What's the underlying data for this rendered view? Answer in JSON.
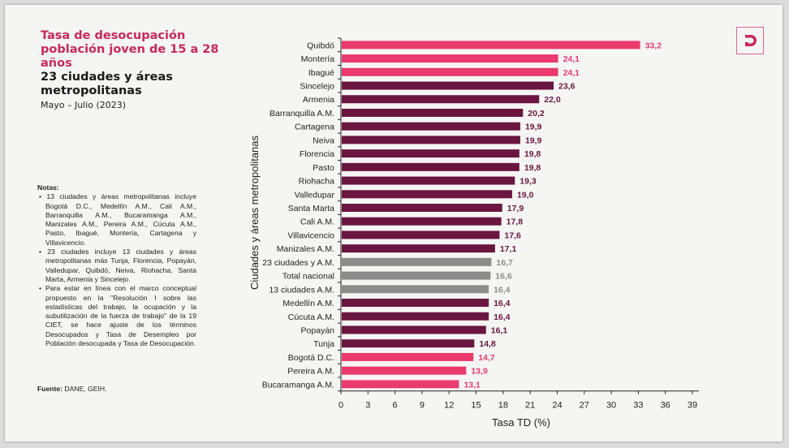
{
  "header": {
    "title_line1": "Tasa de desocupación población joven de 15 a 28 años",
    "title_line2": "23 ciudades y áreas metropolitanas",
    "period": "Mayo – Julio (2023)"
  },
  "notes": {
    "heading": "Notas:",
    "items": [
      "13 ciudades y áreas metropolitanas incluye Bogotá D.C., Medellín A.M., Cali A.M., Barranquilla A.M., Bucaramanga A.M., Manizales A.M., Pereira A.M., Cúcuta A.M., Pasto, Ibagué, Montería, Cartagena y Villavicencio.",
      "23 ciudades incluye 13 ciudades y áreas metropolitanas más Tunja, Florencia, Popayán, Valledupar, Quibdó, Neiva, Riohacha, Santa Marta, Armenia y Sincelejo.",
      "Para estar en línea con el marco conceptual propuesto en la \"Resolución I sobre las estadísticas del trabajo, la ocupación y la subutilización de la fuerza de trabajo\" de la 19 CIET, se hace ajuste de los términos Desocupados y Tasa de Desempleo por Población desocupada y Tasa de Desocupación."
    ],
    "source_label": "Fuente:",
    "source": "DANE, GEIH."
  },
  "logo": {
    "letter": "D",
    "color": "#c8285c"
  },
  "colors": {
    "highlight": "#ea3a6e",
    "default": "#6a1640",
    "aggregate": "#8c8c8c"
  },
  "chart_data": {
    "type": "bar",
    "orientation": "horizontal",
    "xlabel": "Tasa TD (%)",
    "ylabel": "Ciudades y áreas metropolitanas",
    "xlim": [
      0,
      39
    ],
    "xticks": [
      0,
      3,
      6,
      9,
      12,
      15,
      18,
      21,
      24,
      27,
      30,
      33,
      36,
      39
    ],
    "grid": false,
    "categories": [
      "Quibdó",
      "Montería",
      "Ibagué",
      "Sincelejo",
      "Armenia",
      "Barranquilla A.M.",
      "Cartagena",
      "Neiva",
      "Florencia",
      "Pasto",
      "Riohacha",
      "Valledupar",
      "Santa Marta",
      "Cali A.M.",
      "Villavicencio",
      "Manizales A.M.",
      "23 ciudades y A.M.",
      "Total nacional",
      "13 ciudades A.M.",
      "Medellín A.M.",
      "Cúcuta A.M.",
      "Popayán",
      "Tunja",
      "Bogotá D.C.",
      "Pereira A.M.",
      "Bucaramanga A.M."
    ],
    "values": [
      33.2,
      24.1,
      24.1,
      23.6,
      22.0,
      20.2,
      19.9,
      19.9,
      19.8,
      19.8,
      19.3,
      19.0,
      17.9,
      17.8,
      17.6,
      17.1,
      16.7,
      16.6,
      16.4,
      16.4,
      16.4,
      16.1,
      14.8,
      14.7,
      13.9,
      13.1
    ],
    "labels": [
      "33,2",
      "24,1",
      "24,1",
      "23,6",
      "22,0",
      "20,2",
      "19,9",
      "19,9",
      "19,8",
      "19,8",
      "19,3",
      "19,0",
      "17,9",
      "17,8",
      "17,6",
      "17,1",
      "16,7",
      "16,6",
      "16,4",
      "16,4",
      "16,4",
      "16,1",
      "14,8",
      "14,7",
      "13,9",
      "13,1"
    ],
    "color_groups": [
      "highlight",
      "highlight",
      "highlight",
      "default",
      "default",
      "default",
      "default",
      "default",
      "default",
      "default",
      "default",
      "default",
      "default",
      "default",
      "default",
      "default",
      "aggregate",
      "aggregate",
      "aggregate",
      "default",
      "default",
      "default",
      "default",
      "highlight",
      "highlight",
      "highlight"
    ]
  }
}
